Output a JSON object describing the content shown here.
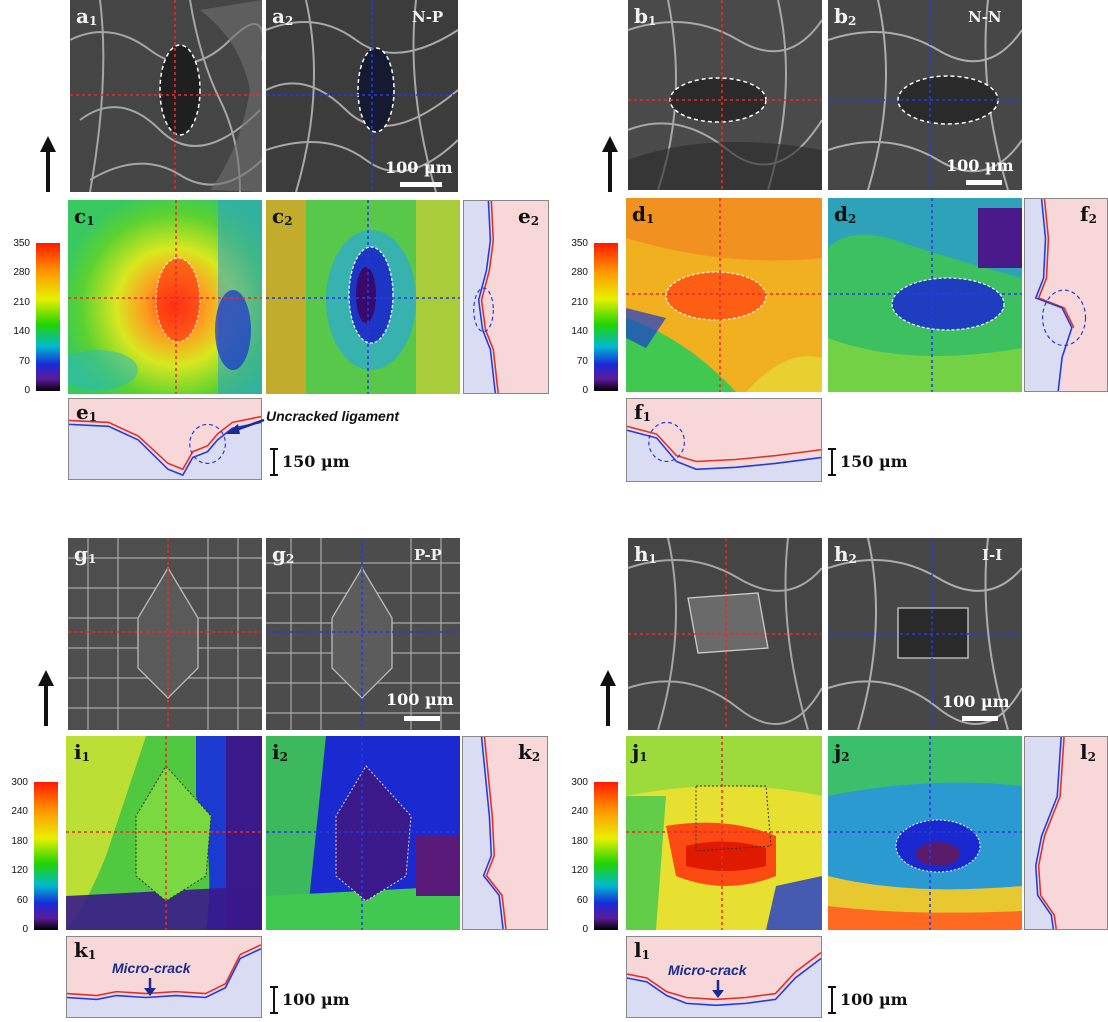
{
  "panels": {
    "a1": {
      "letter": "a",
      "sub": "1"
    },
    "a2": {
      "letter": "a",
      "sub": "2"
    },
    "b1": {
      "letter": "b",
      "sub": "1"
    },
    "b2": {
      "letter": "b",
      "sub": "2"
    },
    "c1": {
      "letter": "c",
      "sub": "1"
    },
    "c2": {
      "letter": "c",
      "sub": "2"
    },
    "d1": {
      "letter": "d",
      "sub": "1"
    },
    "d2": {
      "letter": "d",
      "sub": "2"
    },
    "e1": {
      "letter": "e",
      "sub": "1"
    },
    "e2": {
      "letter": "e",
      "sub": "2"
    },
    "f1": {
      "letter": "f",
      "sub": "1"
    },
    "f2": {
      "letter": "f",
      "sub": "2"
    },
    "g1": {
      "letter": "g",
      "sub": "1"
    },
    "g2": {
      "letter": "g",
      "sub": "2"
    },
    "h1": {
      "letter": "h",
      "sub": "1"
    },
    "h2": {
      "letter": "h",
      "sub": "2"
    },
    "i1": {
      "letter": "i",
      "sub": "1"
    },
    "i2": {
      "letter": "i",
      "sub": "2"
    },
    "j1": {
      "letter": "j",
      "sub": "1"
    },
    "j2": {
      "letter": "j",
      "sub": "2"
    },
    "k1": {
      "letter": "k",
      "sub": "1"
    },
    "k2": {
      "letter": "k",
      "sub": "2"
    },
    "l1": {
      "letter": "l",
      "sub": "1"
    },
    "l2": {
      "letter": "l",
      "sub": "2"
    }
  },
  "pair_labels": {
    "a": "N-P",
    "b": "N-N",
    "g": "P-P",
    "h": "I-I"
  },
  "scale_bars": {
    "sem": "100 µm",
    "profile_top": "150 µm",
    "profile_bottom": "100 µm"
  },
  "annotations": {
    "uncracked": "Uncracked ligament",
    "microcrack_k": "Micro-crack",
    "microcrack_l": "Micro-crack"
  },
  "colorbar_top_ticks": [
    "350",
    "280",
    "210",
    "140",
    "70",
    "0"
  ],
  "colorbar_bottom_ticks": [
    "300",
    "240",
    "180",
    "120",
    "60",
    "0"
  ],
  "colors": {
    "profile_fill_top": "#f7d7d7",
    "profile_fill_bottom": "#d9dcf3",
    "red_line": "#e0302a",
    "blue_line": "#2a3ad6"
  }
}
